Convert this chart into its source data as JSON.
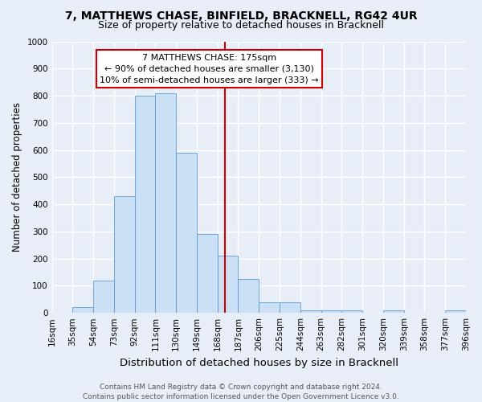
{
  "title": "7, MATTHEWS CHASE, BINFIELD, BRACKNELL, RG42 4UR",
  "subtitle": "Size of property relative to detached houses in Bracknell",
  "xlabel": "Distribution of detached houses by size in Bracknell",
  "ylabel": "Number of detached properties",
  "bin_edges": [
    16,
    35,
    54,
    73,
    92,
    111,
    130,
    149,
    168,
    187,
    206,
    225,
    244,
    263,
    282,
    301,
    320,
    339,
    358,
    377,
    396
  ],
  "bar_heights": [
    0,
    20,
    120,
    430,
    800,
    810,
    590,
    290,
    210,
    125,
    40,
    40,
    10,
    10,
    10,
    0,
    10,
    0,
    0,
    10
  ],
  "bar_facecolor": "#cce0f5",
  "bar_edgecolor": "#5b9bd5",
  "vline_x": 175,
  "vline_color": "#cc0000",
  "ylim": [
    0,
    1000
  ],
  "yticks": [
    0,
    100,
    200,
    300,
    400,
    500,
    600,
    700,
    800,
    900,
    1000
  ],
  "annotation_title": "7 MATTHEWS CHASE: 175sqm",
  "annotation_line1": "← 90% of detached houses are smaller (3,130)",
  "annotation_line2": "10% of semi-detached houses are larger (333) →",
  "annotation_box_color": "#ffffff",
  "annotation_box_edgecolor": "#cc0000",
  "background_color": "#e8eef8",
  "grid_color": "#ffffff",
  "footer_line1": "Contains HM Land Registry data © Crown copyright and database right 2024.",
  "footer_line2": "Contains public sector information licensed under the Open Government Licence v3.0.",
  "title_fontsize": 10,
  "subtitle_fontsize": 9,
  "xlabel_fontsize": 9.5,
  "ylabel_fontsize": 8.5,
  "tick_fontsize": 7.5,
  "footer_fontsize": 6.5,
  "annot_fontsize": 8
}
